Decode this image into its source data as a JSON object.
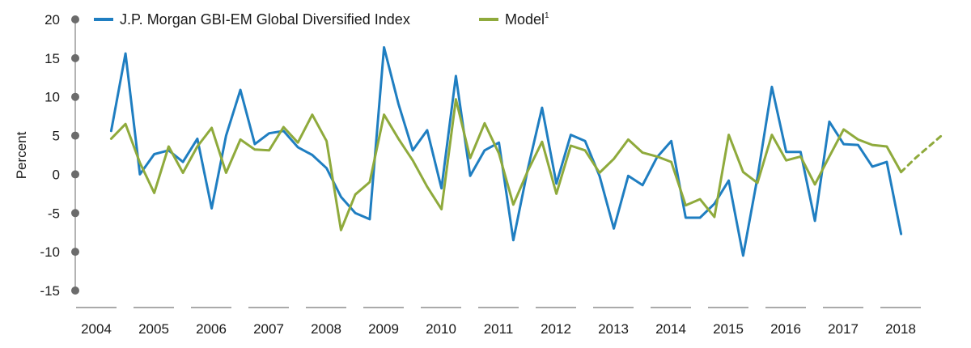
{
  "chart_data": {
    "type": "line",
    "ylabel": "Percent",
    "ylim": [
      -15,
      20
    ],
    "yticks": [
      20,
      15,
      10,
      5,
      0,
      -5,
      -10,
      -15
    ],
    "years": [
      "2004",
      "2005",
      "2006",
      "2007",
      "2008",
      "2009",
      "2010",
      "2011",
      "2012",
      "2013",
      "2014",
      "2015",
      "2016",
      "2017",
      "2018"
    ],
    "x_unit": "quarter",
    "x_start": "2004 Q3",
    "legend_position": "top-left",
    "series": [
      {
        "name": "J.P. Morgan GBI-EM Global Diversified Index",
        "sup": "",
        "color": "#1f7ec1",
        "x": [
          "2004 Q3",
          "2004 Q4",
          "2005 Q1",
          "2005 Q2",
          "2005 Q3",
          "2005 Q4",
          "2006 Q1",
          "2006 Q2",
          "2006 Q3",
          "2006 Q4",
          "2007 Q1",
          "2007 Q2",
          "2007 Q3",
          "2007 Q4",
          "2008 Q1",
          "2008 Q2",
          "2008 Q3",
          "2008 Q4",
          "2009 Q1",
          "2009 Q2",
          "2009 Q3",
          "2009 Q4",
          "2010 Q1",
          "2010 Q2",
          "2010 Q3",
          "2010 Q4",
          "2011 Q1",
          "2011 Q2",
          "2011 Q3",
          "2011 Q4",
          "2012 Q1",
          "2012 Q2",
          "2012 Q3",
          "2012 Q4",
          "2013 Q1",
          "2013 Q2",
          "2013 Q3",
          "2013 Q4",
          "2014 Q1",
          "2014 Q2",
          "2014 Q3",
          "2014 Q4",
          "2015 Q1",
          "2015 Q2",
          "2015 Q3",
          "2015 Q4",
          "2016 Q1",
          "2016 Q2",
          "2016 Q3",
          "2016 Q4",
          "2017 Q1",
          "2017 Q2",
          "2017 Q3",
          "2017 Q4",
          "2018 Q1",
          "2018 Q2"
        ],
        "values": [
          5.6,
          15.6,
          0.0,
          2.6,
          3.1,
          1.6,
          4.6,
          -4.4,
          5.0,
          10.9,
          3.9,
          5.3,
          5.6,
          3.5,
          2.5,
          0.8,
          -2.9,
          -5.0,
          -5.8,
          16.4,
          9.1,
          3.1,
          5.7,
          -1.8,
          12.7,
          -0.2,
          3.1,
          4.1,
          -8.5,
          0.6,
          8.6,
          -1.2,
          5.1,
          4.3,
          -0.2,
          -7.0,
          -0.2,
          -1.4,
          2.2,
          4.3,
          -5.6,
          -5.6,
          -3.8,
          -0.8,
          -10.5,
          -0.4,
          11.3,
          2.9,
          2.9,
          -6.0,
          6.8,
          3.9,
          3.8,
          1.0,
          1.6,
          -7.7
        ]
      },
      {
        "name": "Model",
        "sup": "1",
        "color": "#8faa3c",
        "x": [
          "2004 Q3",
          "2004 Q4",
          "2005 Q1",
          "2005 Q2",
          "2005 Q3",
          "2005 Q4",
          "2006 Q1",
          "2006 Q2",
          "2006 Q3",
          "2006 Q4",
          "2007 Q1",
          "2007 Q2",
          "2007 Q3",
          "2007 Q4",
          "2008 Q1",
          "2008 Q2",
          "2008 Q3",
          "2008 Q4",
          "2009 Q1",
          "2009 Q2",
          "2009 Q3",
          "2009 Q4",
          "2010 Q1",
          "2010 Q2",
          "2010 Q3",
          "2010 Q4",
          "2011 Q1",
          "2011 Q2",
          "2011 Q3",
          "2011 Q4",
          "2012 Q1",
          "2012 Q2",
          "2012 Q3",
          "2012 Q4",
          "2013 Q1",
          "2013 Q2",
          "2013 Q3",
          "2013 Q4",
          "2014 Q1",
          "2014 Q2",
          "2014 Q3",
          "2014 Q4",
          "2015 Q1",
          "2015 Q2",
          "2015 Q3",
          "2015 Q4",
          "2016 Q1",
          "2016 Q2",
          "2016 Q3",
          "2016 Q4",
          "2017 Q1",
          "2017 Q2",
          "2017 Q3",
          "2017 Q4",
          "2018 Q1",
          "2018 Q2"
        ],
        "values": [
          4.6,
          6.5,
          1.5,
          -2.4,
          3.6,
          0.2,
          3.6,
          6.0,
          0.2,
          4.5,
          3.2,
          3.1,
          6.1,
          4.1,
          7.7,
          4.3,
          -7.2,
          -2.6,
          -1.0,
          7.7,
          4.6,
          1.8,
          -1.6,
          -4.5,
          9.7,
          2.1,
          6.6,
          2.7,
          -3.9,
          0.4,
          4.2,
          -2.5,
          3.7,
          3.1,
          0.2,
          2.0,
          4.5,
          2.8,
          2.3,
          1.6,
          -4.0,
          -3.2,
          -5.5,
          5.1,
          0.3,
          -1.1,
          5.1,
          1.8,
          2.3,
          -1.3,
          2.3,
          5.8,
          4.5,
          3.8,
          3.6,
          0.3
        ]
      },
      {
        "name": "",
        "style": "dashed",
        "color": "#8faa3c",
        "x": [
          "2018 Q2",
          "2018 Q3",
          "2018 Q4",
          "2019 Q1"
        ],
        "values": [
          0.3,
          2.1,
          3.7,
          5.3
        ]
      }
    ]
  }
}
